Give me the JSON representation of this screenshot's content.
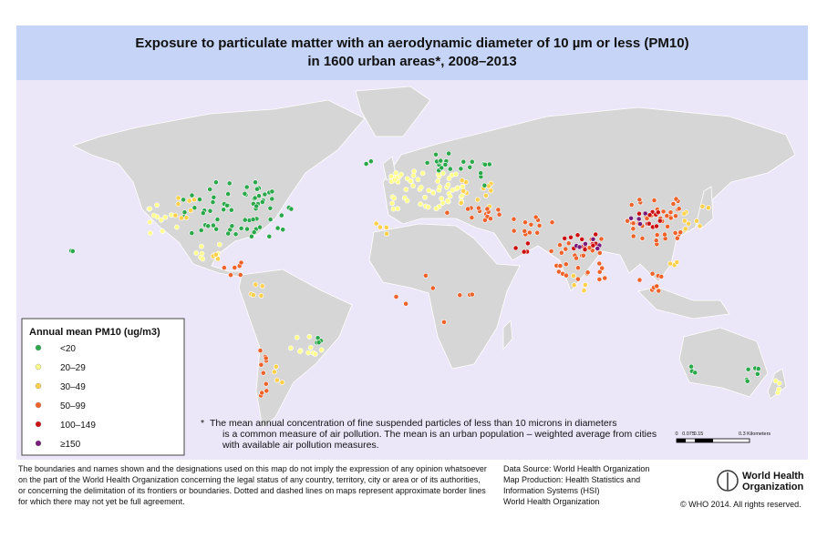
{
  "title": {
    "lines": [
      "Exposure to particulate matter with an aerodynamic diameter of 10 µm or less (PM10)",
      "in 1600 urban areas*, 2008–2013"
    ]
  },
  "legend": {
    "title": "Annual mean PM10 (ug/m3)",
    "items": [
      {
        "label": "<20",
        "color": "#2aa84a"
      },
      {
        "label": "20–29",
        "color": "#ffff8a"
      },
      {
        "label": "30–49",
        "color": "#ffd04a"
      },
      {
        "label": "50–99",
        "color": "#f0622a"
      },
      {
        "label": "100–149",
        "color": "#cc1111"
      },
      {
        "label": "≥150",
        "color": "#7a1a7a"
      }
    ]
  },
  "footnote": {
    "marker": "*",
    "lines": [
      "The mean annual concentration of fine suspended particles of less than 10 microns in diameters",
      "is a common measure of air pollution. The mean is an urban population – weighted average from cities",
      "with available air pollution measures."
    ]
  },
  "scale_bar": {
    "labels": [
      "0",
      "0.075",
      "0.15",
      "0.3 Kilometers"
    ]
  },
  "disclaimer": {
    "lines": [
      "The boundaries and names shown and the designations used on this map do not imply the expression of any opinion whatsoever",
      "on the part of the World Health Organization concerning the legal status of any country, territory, city or area or of its authorities,",
      "or concerning the delimitation of its frontiers or boundaries. Dotted and dashed lines on maps represent approximate border lines",
      "for which there may not yet be full agreement."
    ]
  },
  "data_source": {
    "lines": [
      "Data Source: World Health Organization",
      "Map Production: Health Statistics and",
      "Information Systems (HSI)",
      "World Health Organization"
    ]
  },
  "logo": {
    "lines": [
      "World Health",
      "Organization"
    ]
  },
  "copyright": "© WHO 2014. All rights reserved."
}
